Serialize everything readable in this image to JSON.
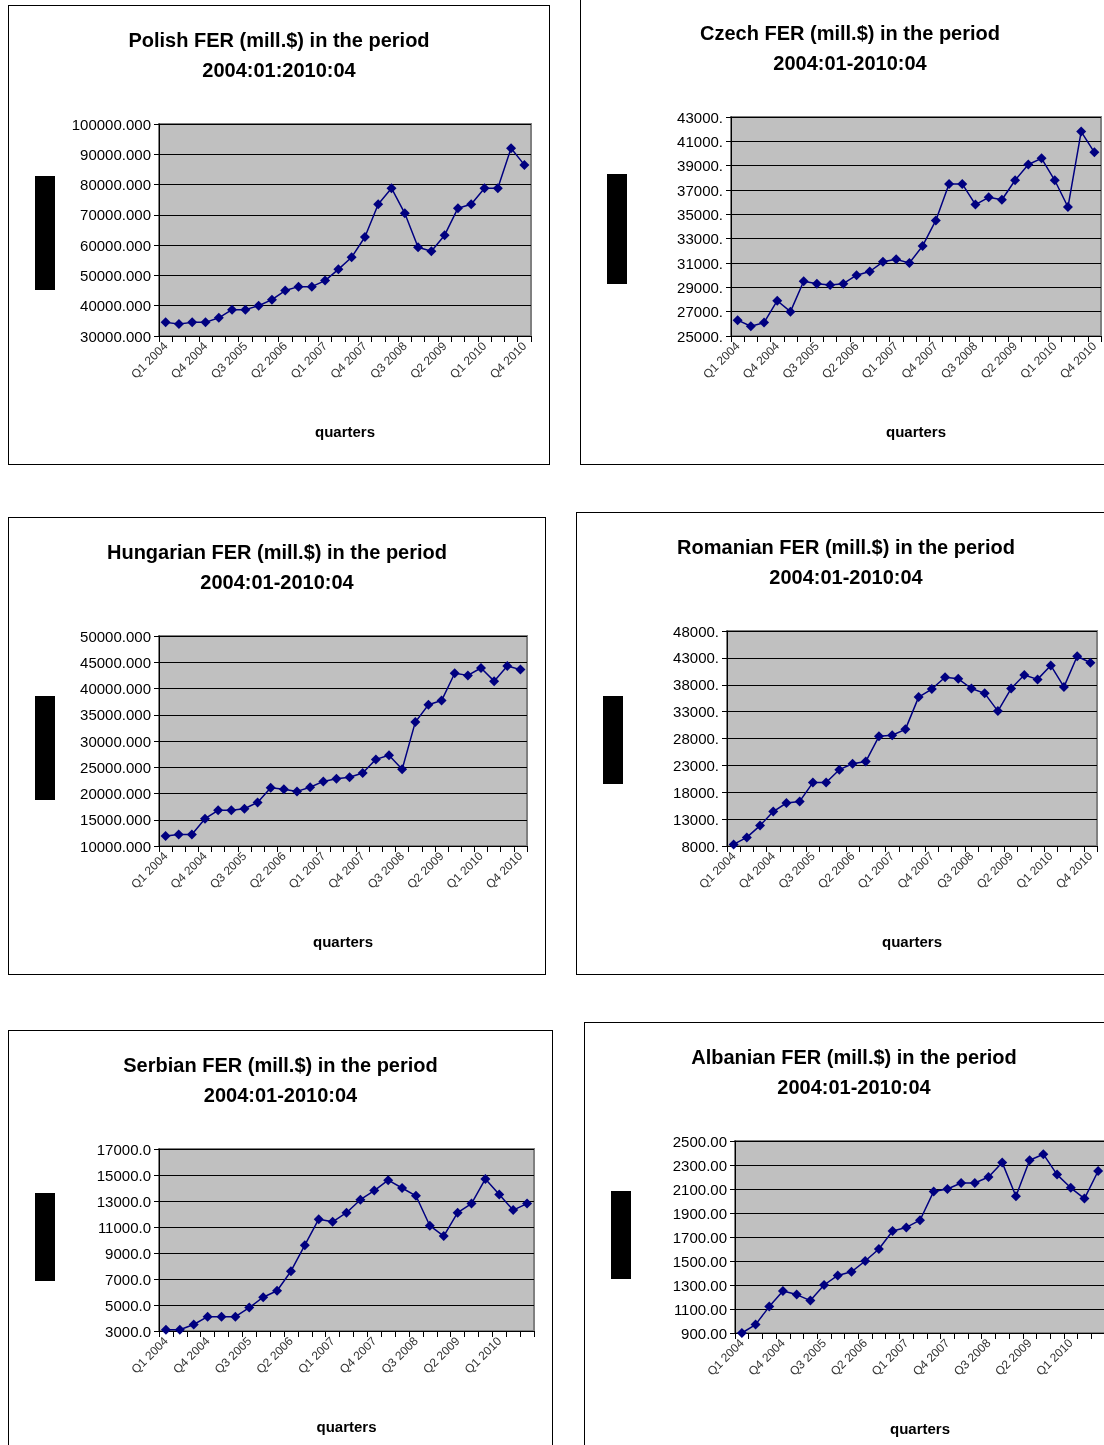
{
  "chart_data": [
    {
      "type": "line",
      "title": "Polish FER (mill.$) in the period\n2004:01:2010:04",
      "xlabel": "quarters",
      "categories": [
        "Q1 2004",
        null,
        null,
        "Q4 2004",
        null,
        null,
        "Q3 2005",
        null,
        null,
        "Q2 2006",
        null,
        null,
        "Q1 2007",
        null,
        null,
        "Q4 2007",
        null,
        null,
        "Q3 2008",
        null,
        null,
        "Q2 2009",
        null,
        null,
        "Q1 2010",
        null,
        null,
        "Q4 2010"
      ],
      "series": [
        {
          "color": "#000080",
          "values": [
            34500,
            34000,
            34500,
            34500,
            36000,
            38700,
            38700,
            40000,
            42000,
            45000,
            46300,
            46300,
            48300,
            52000,
            56000,
            62700,
            73500,
            78800,
            70500,
            59300,
            58000,
            63300,
            72200,
            73500,
            78800,
            78800,
            92000,
            86500
          ]
        }
      ],
      "ylim": [
        30000,
        100000
      ],
      "yticks": [
        {
          "value": 30000,
          "label": "30000.000"
        },
        {
          "value": 40000,
          "label": "40000.000"
        },
        {
          "value": 50000,
          "label": "50000.000"
        },
        {
          "value": 60000,
          "label": "60000.000"
        },
        {
          "value": 70000,
          "label": "70000.000"
        },
        {
          "value": 80000,
          "label": "80000.000"
        },
        {
          "value": 90000,
          "label": "90000.000"
        },
        {
          "value": 100000,
          "label": "100000.000"
        }
      ],
      "grid": "y",
      "marker": "diamond",
      "line_style": "solid"
    },
    {
      "type": "line",
      "title": "Czech FER (mill.$) in the period\n2004:01-2010:04",
      "xlabel": "quarters",
      "categories": [
        "Q1 2004",
        null,
        null,
        "Q4 2004",
        null,
        null,
        "Q3 2005",
        null,
        null,
        "Q2 2006",
        null,
        null,
        "Q1 2007",
        null,
        null,
        "Q4 2007",
        null,
        null,
        "Q3 2008",
        null,
        null,
        "Q2 2009",
        null,
        null,
        "Q1 2010",
        null,
        null,
        "Q4 2010"
      ],
      "series": [
        {
          "color": "#000080",
          "values": [
            26300,
            25800,
            26100,
            27900,
            27000,
            29500,
            29300,
            29200,
            29300,
            30000,
            30300,
            31100,
            31300,
            31000,
            32400,
            34500,
            37500,
            37500,
            35800,
            36400,
            36200,
            37800,
            39100,
            39600,
            37800,
            35600,
            41800,
            40100
          ]
        }
      ],
      "ylim": [
        25000,
        43000
      ],
      "yticks": [
        {
          "value": 25000,
          "label": "25000."
        },
        {
          "value": 27000,
          "label": "27000."
        },
        {
          "value": 29000,
          "label": "29000."
        },
        {
          "value": 31000,
          "label": "31000."
        },
        {
          "value": 33000,
          "label": "33000."
        },
        {
          "value": 35000,
          "label": "35000."
        },
        {
          "value": 37000,
          "label": "37000."
        },
        {
          "value": 39000,
          "label": "39000."
        },
        {
          "value": 41000,
          "label": "41000."
        },
        {
          "value": 43000,
          "label": "43000."
        }
      ],
      "grid": "y",
      "marker": "diamond",
      "line_style": "solid"
    },
    {
      "type": "line",
      "title": "Hungarian FER (mill.$) in the period\n2004:01-2010:04",
      "xlabel": "quarters",
      "categories": [
        "Q1 2004",
        null,
        null,
        "Q4 2004",
        null,
        null,
        "Q3 2005",
        null,
        null,
        "Q2 2006",
        null,
        null,
        "Q1 2007",
        null,
        null,
        "Q4 2007",
        null,
        null,
        "Q3 2008",
        null,
        null,
        "Q2 2009",
        null,
        null,
        "Q1 2010",
        null,
        null,
        "Q4 2010"
      ],
      "series": [
        {
          "color": "#000080",
          "values": [
            11900,
            12200,
            12200,
            15200,
            16800,
            16800,
            17100,
            18300,
            21100,
            20800,
            20400,
            21200,
            22300,
            22800,
            23100,
            23900,
            26500,
            27300,
            24600,
            33600,
            36900,
            37700,
            42900,
            42500,
            43900,
            41400,
            44300,
            43600
          ]
        }
      ],
      "ylim": [
        10000,
        50000
      ],
      "yticks": [
        {
          "value": 10000,
          "label": "10000.000"
        },
        {
          "value": 15000,
          "label": "15000.000"
        },
        {
          "value": 20000,
          "label": "20000.000"
        },
        {
          "value": 25000,
          "label": "25000.000"
        },
        {
          "value": 30000,
          "label": "30000.000"
        },
        {
          "value": 35000,
          "label": "35000.000"
        },
        {
          "value": 40000,
          "label": "40000.000"
        },
        {
          "value": 45000,
          "label": "45000.000"
        },
        {
          "value": 50000,
          "label": "50000.000"
        }
      ],
      "grid": "y",
      "marker": "diamond",
      "line_style": "solid"
    },
    {
      "type": "line",
      "title": "Romanian FER (mill.$) in the period\n2004:01-2010:04",
      "xlabel": "quarters",
      "categories": [
        "Q1 2004",
        null,
        null,
        "Q4 2004",
        null,
        null,
        "Q3 2005",
        null,
        null,
        "Q2 2006",
        null,
        null,
        "Q1 2007",
        null,
        null,
        "Q4 2007",
        null,
        null,
        "Q3 2008",
        null,
        null,
        "Q2 2009",
        null,
        null,
        "Q1 2010",
        null,
        null,
        "Q4 2010"
      ],
      "series": [
        {
          "color": "#000080",
          "values": [
            8300,
            9600,
            11800,
            14400,
            16000,
            16300,
            19800,
            19800,
            22200,
            23300,
            23700,
            28400,
            28600,
            29700,
            35700,
            37200,
            39400,
            39100,
            37300,
            36400,
            33100,
            37300,
            39800,
            39000,
            41600,
            37600,
            43300,
            42100
          ]
        }
      ],
      "ylim": [
        8000,
        48000
      ],
      "yticks": [
        {
          "value": 8000,
          "label": "8000."
        },
        {
          "value": 13000,
          "label": "13000."
        },
        {
          "value": 18000,
          "label": "18000."
        },
        {
          "value": 23000,
          "label": "23000."
        },
        {
          "value": 28000,
          "label": "28000."
        },
        {
          "value": 33000,
          "label": "33000."
        },
        {
          "value": 38000,
          "label": "38000."
        },
        {
          "value": 43000,
          "label": "43000."
        },
        {
          "value": 48000,
          "label": "48000."
        }
      ],
      "grid": "y",
      "marker": "diamond",
      "line_style": "solid"
    },
    {
      "type": "line",
      "title": "Serbian FER (mill.$) in the period\n2004:01-2010:04",
      "xlabel": "quarters",
      "categories": [
        "Q1 2004",
        null,
        null,
        "Q4 2004",
        null,
        null,
        "Q3 2005",
        null,
        null,
        "Q2 2006",
        null,
        null,
        "Q1 2007",
        null,
        null,
        "Q4 2007",
        null,
        null,
        "Q3 2008",
        null,
        null,
        "Q2 2009",
        null,
        null,
        "Q1 2010",
        null,
        null
      ],
      "series": [
        {
          "color": "#000080",
          "values": [
            3100,
            3100,
            3500,
            4100,
            4100,
            4100,
            4800,
            5600,
            6100,
            7600,
            9600,
            11600,
            11400,
            12100,
            13100,
            13800,
            14600,
            14000,
            13400,
            11100,
            10300,
            12100,
            12800,
            14700,
            13500,
            12300,
            12800
          ]
        }
      ],
      "ylim": [
        3000,
        17000
      ],
      "yticks": [
        {
          "value": 3000,
          "label": "3000.0"
        },
        {
          "value": 5000,
          "label": "5000.0"
        },
        {
          "value": 7000,
          "label": "7000.0"
        },
        {
          "value": 9000,
          "label": "9000.0"
        },
        {
          "value": 11000,
          "label": "11000.0"
        },
        {
          "value": 13000,
          "label": "13000.0"
        },
        {
          "value": 15000,
          "label": "15000.0"
        },
        {
          "value": 17000,
          "label": "17000.0"
        }
      ],
      "grid": "y",
      "marker": "diamond",
      "line_style": "solid"
    },
    {
      "type": "line",
      "title": "Albanian FER (mill.$) in the period\n2004:01-2010:04",
      "xlabel": "quarters",
      "categories": [
        "Q1 2004",
        null,
        null,
        "Q4 2004",
        null,
        null,
        "Q3 2005",
        null,
        null,
        "Q2 2006",
        null,
        null,
        "Q1 2007",
        null,
        null,
        "Q4 2007",
        null,
        null,
        "Q3 2008",
        null,
        null,
        "Q2 2009",
        null,
        null,
        "Q1 2010",
        null,
        null
      ],
      "series": [
        {
          "color": "#000080",
          "values": [
            900,
            970,
            1120,
            1250,
            1220,
            1170,
            1300,
            1380,
            1410,
            1500,
            1600,
            1750,
            1780,
            1840,
            2080,
            2100,
            2150,
            2150,
            2200,
            2320,
            2040,
            2340,
            2390,
            2220,
            2110,
            2020,
            2250
          ]
        }
      ],
      "ylim": [
        900,
        2500
      ],
      "yticks": [
        {
          "value": 900,
          "label": "900.00"
        },
        {
          "value": 1100,
          "label": "1100.00"
        },
        {
          "value": 1300,
          "label": "1300.00"
        },
        {
          "value": 1500,
          "label": "1500.00"
        },
        {
          "value": 1700,
          "label": "1700.00"
        },
        {
          "value": 1900,
          "label": "1900.00"
        },
        {
          "value": 2100,
          "label": "2100.00"
        },
        {
          "value": 2300,
          "label": "2300.00"
        },
        {
          "value": 2500,
          "label": "2500.00"
        }
      ],
      "grid": "y",
      "marker": "diamond",
      "line_style": "solid"
    }
  ]
}
